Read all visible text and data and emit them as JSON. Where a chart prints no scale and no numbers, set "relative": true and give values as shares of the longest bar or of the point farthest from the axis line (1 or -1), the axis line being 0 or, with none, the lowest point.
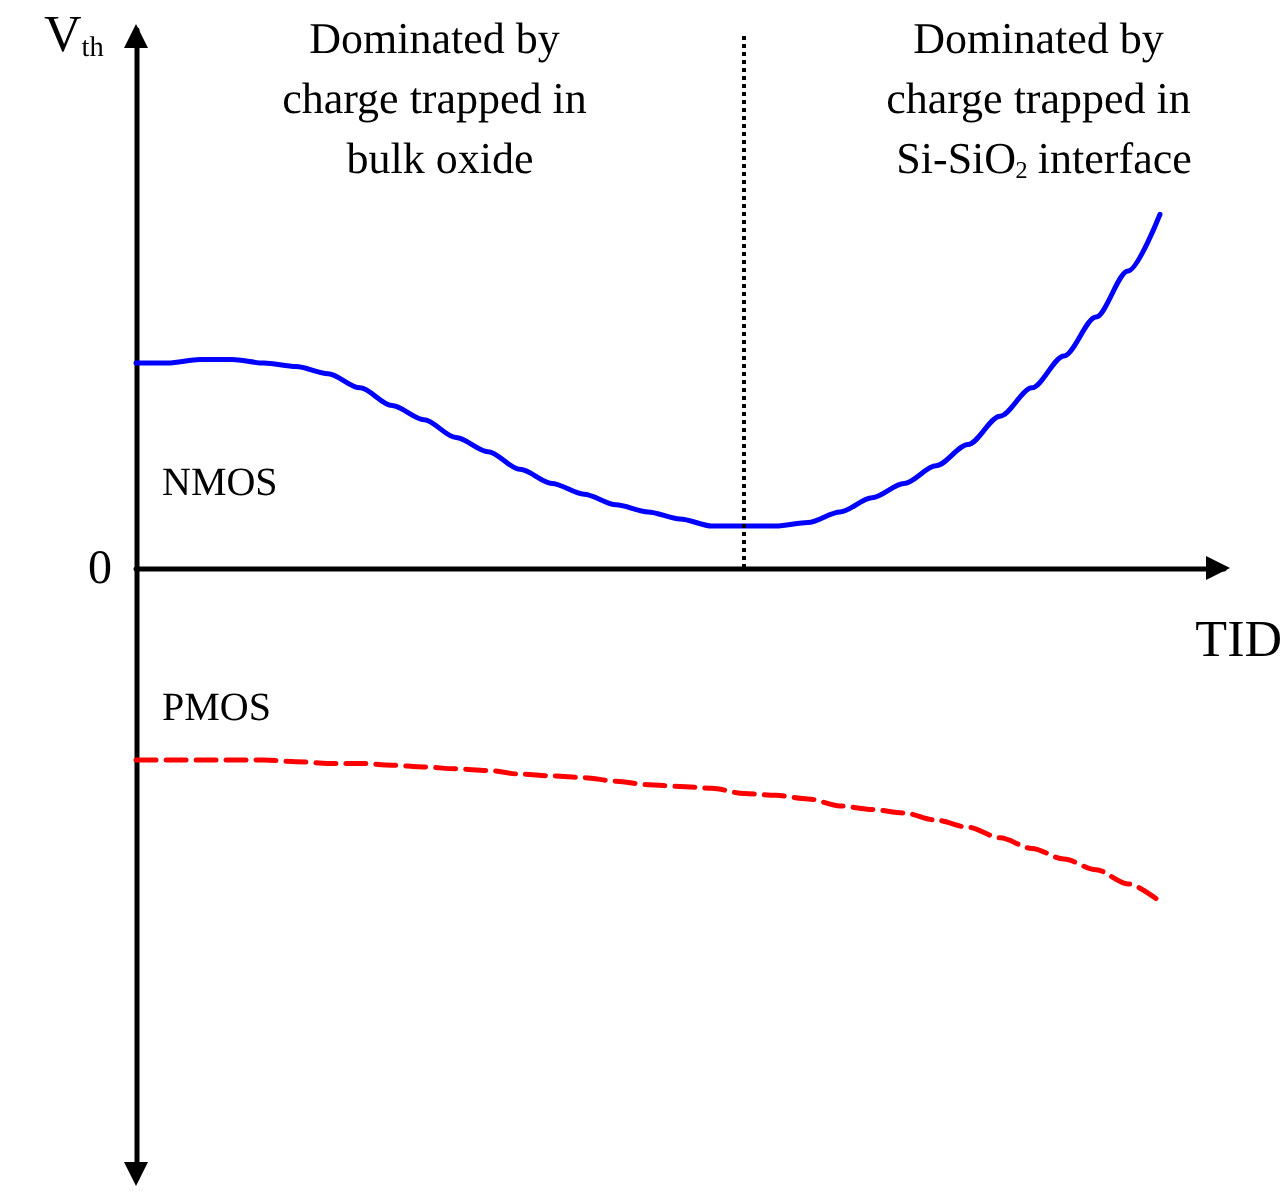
{
  "chart_data": {
    "type": "line",
    "relative": true,
    "xlabel": "TID",
    "ylabel": "V$_{th}$",
    "annotations": [
      "Dominated by charge trapped in bulk oxide",
      "Dominated by charge trapped in Si-SiO$_{2}$ interface",
      "0"
    ],
    "categories": [
      null,
      null,
      null,
      null,
      null,
      null,
      null,
      null,
      null,
      null,
      null,
      null,
      null,
      null,
      null,
      null,
      null,
      null,
      null,
      null,
      null,
      null,
      null,
      null,
      null,
      null,
      null,
      null,
      null,
      null,
      null,
      null,
      null,
      null,
      null
    ],
    "series": [
      {
        "name": "NMOS",
        "color": "#0000ff",
        "line_style": "solid",
        "values": [
          0.58,
          0.58,
          0.59,
          0.59,
          0.58,
          0.57,
          0.55,
          0.51,
          0.46,
          0.42,
          0.37,
          0.33,
          0.28,
          0.24,
          0.21,
          0.18,
          0.16,
          0.14,
          0.12,
          0.12,
          0.12,
          0.13,
          0.16,
          0.2,
          0.24,
          0.29,
          0.35,
          0.43,
          0.51,
          0.6,
          0.71,
          0.84,
          1,
          null,
          null
        ]
      },
      {
        "name": "PMOS",
        "color": "#ff0000",
        "line_style": "dashed",
        "values": [
          -0.54,
          -0.54,
          -0.54,
          -0.54,
          -0.54,
          -0.545,
          -0.55,
          -0.55,
          -0.555,
          -0.56,
          -0.565,
          -0.57,
          -0.58,
          -0.585,
          -0.59,
          -0.6,
          -0.61,
          -0.615,
          -0.62,
          -0.635,
          -0.64,
          -0.65,
          -0.67,
          -0.68,
          -0.69,
          -0.71,
          -0.73,
          -0.76,
          -0.79,
          -0.82,
          -0.85,
          -0.89,
          -0.94,
          null,
          null
        ]
      }
    ],
    "marker": "none",
    "legend": false,
    "grid": false
  }
}
